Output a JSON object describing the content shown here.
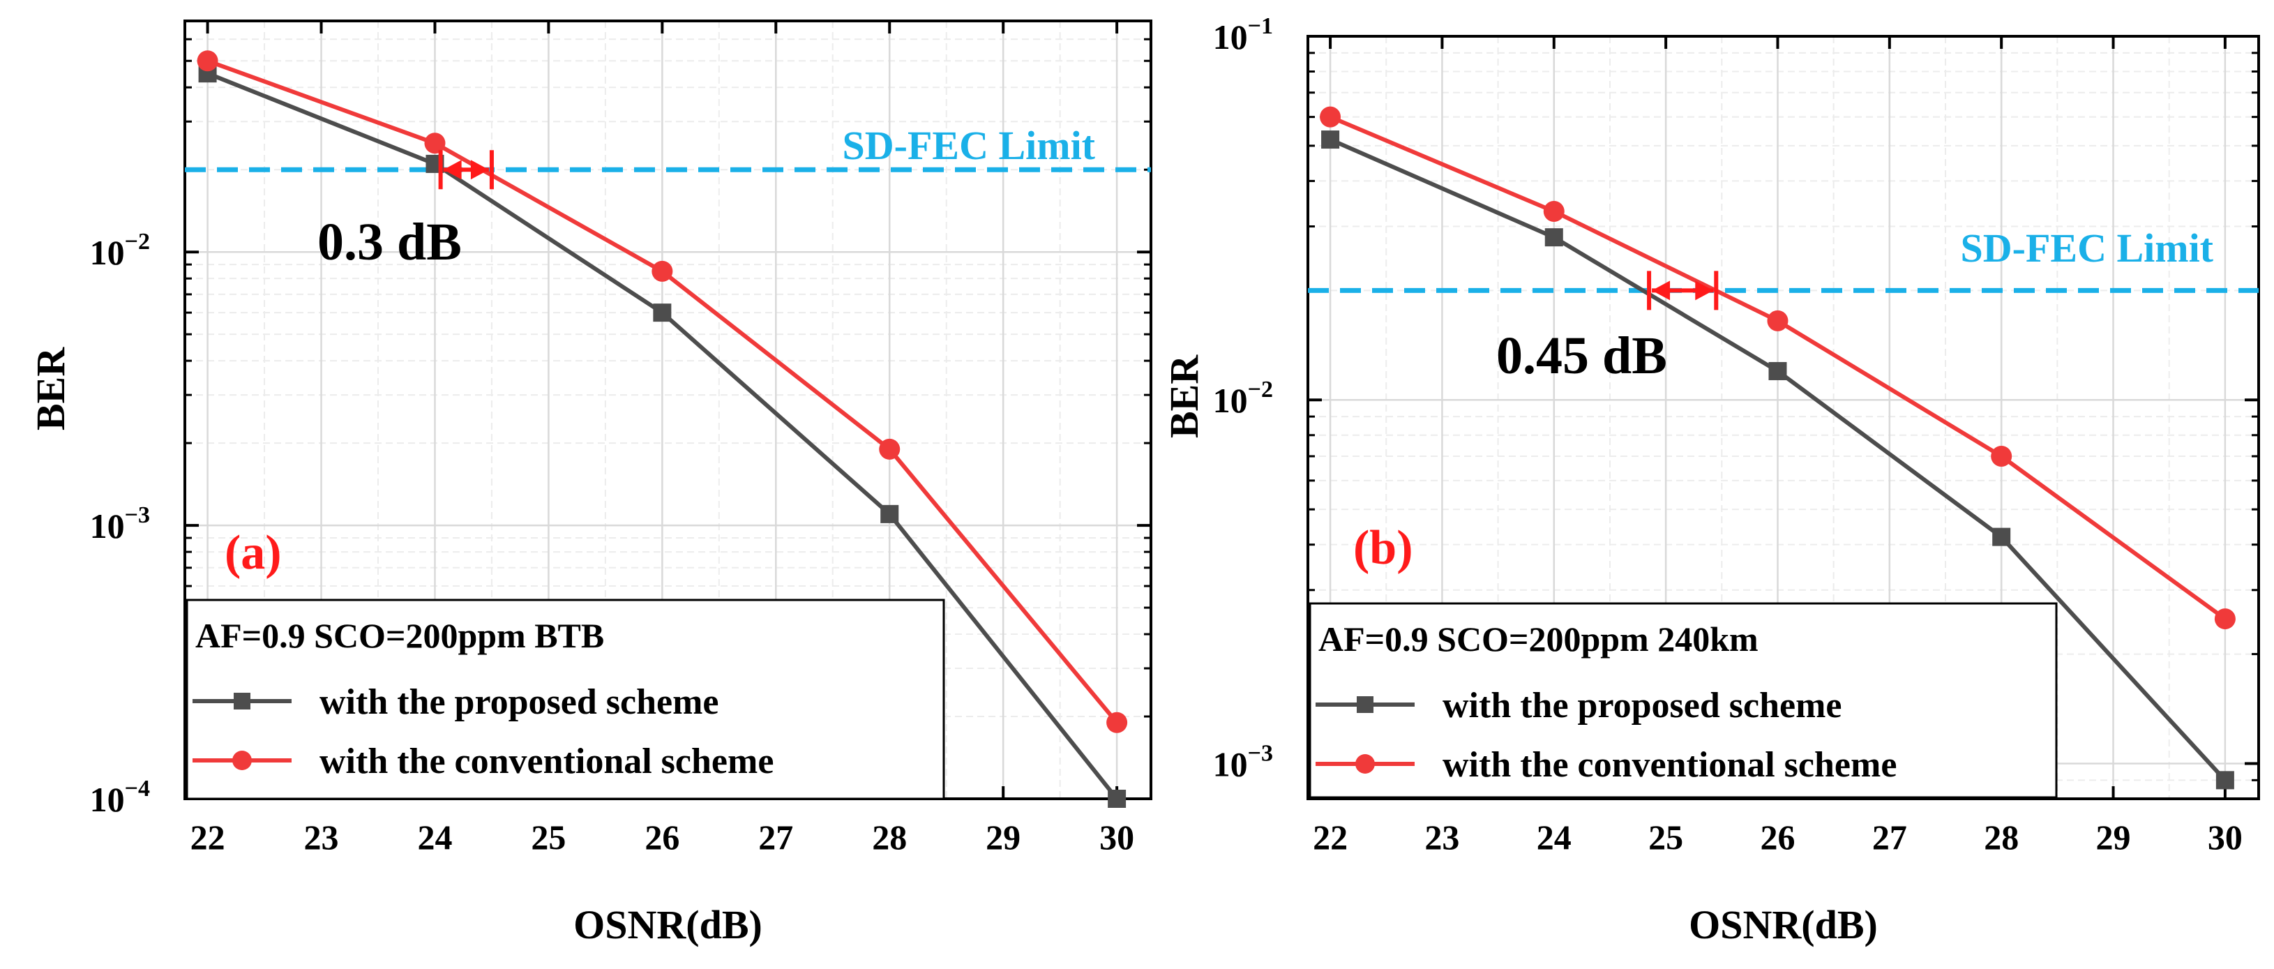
{
  "colors": {
    "proposed": "#4d4d4d",
    "conventional": "#f03a3a",
    "fec": "#1ab0e8",
    "gap": "#ff1a1a",
    "grid": "#d9d9d9",
    "grid_minor": "#ececec"
  },
  "chart_data": [
    {
      "type": "line",
      "panel": "(a)",
      "xlabel": "OSNR(dB)",
      "ylabel": "BER",
      "yscale": "log",
      "xlim": [
        21.8,
        30.3
      ],
      "ylim": [
        0.0001,
        0.07
      ],
      "x_ticks": [
        "22",
        "23",
        "24",
        "25",
        "26",
        "27",
        "28",
        "29",
        "30"
      ],
      "y_ticks": [
        {
          "value": 0.01,
          "base": "10",
          "exp": "−2"
        },
        {
          "value": 0.001,
          "base": "10",
          "exp": "−3"
        },
        {
          "value": 0.0001,
          "base": "10",
          "exp": "−4"
        }
      ],
      "x": [
        22,
        24,
        26,
        28,
        30
      ],
      "series": [
        {
          "name": "with the proposed scheme",
          "marker": "square",
          "values": [
            0.045,
            0.021,
            0.006,
            0.0011,
            0.0001
          ]
        },
        {
          "name": "with the conventional scheme",
          "marker": "circle",
          "values": [
            0.05,
            0.025,
            0.0085,
            0.0019,
            0.00019
          ]
        }
      ],
      "threshold": {
        "label": "SD-FEC Limit",
        "value": 0.02
      },
      "gap": {
        "label": "0.3 dB",
        "x1": 24.05,
        "x2": 24.5
      },
      "legend_title": "AF=0.9 SCO=200ppm  BTB",
      "legend_position": "bottom-left"
    },
    {
      "type": "line",
      "panel": "(b)",
      "xlabel": "OSNR(dB)",
      "ylabel": "BER",
      "yscale": "log",
      "xlim": [
        21.8,
        30.3
      ],
      "ylim": [
        0.0008,
        0.1
      ],
      "x_ticks": [
        "22",
        "23",
        "24",
        "25",
        "26",
        "27",
        "28",
        "29",
        "30"
      ],
      "y_ticks": [
        {
          "value": 0.1,
          "base": "10",
          "exp": "−1"
        },
        {
          "value": 0.01,
          "base": "10",
          "exp": "−2"
        },
        {
          "value": 0.001,
          "base": "10",
          "exp": "−3"
        }
      ],
      "x": [
        22,
        24,
        26,
        28,
        30
      ],
      "series": [
        {
          "name": "with the proposed scheme",
          "marker": "square",
          "values": [
            0.052,
            0.028,
            0.012,
            0.0042,
            0.0009
          ]
        },
        {
          "name": "with the conventional scheme",
          "marker": "circle",
          "values": [
            0.06,
            0.033,
            0.0165,
            0.007,
            0.0025
          ]
        }
      ],
      "threshold": {
        "label": "SD-FEC Limit",
        "value": 0.02
      },
      "gap": {
        "label": "0.45 dB",
        "x1": 24.85,
        "x2": 25.45
      },
      "legend_title": "AF=0.9 SCO=200ppm  240km",
      "legend_position": "bottom-left"
    }
  ]
}
